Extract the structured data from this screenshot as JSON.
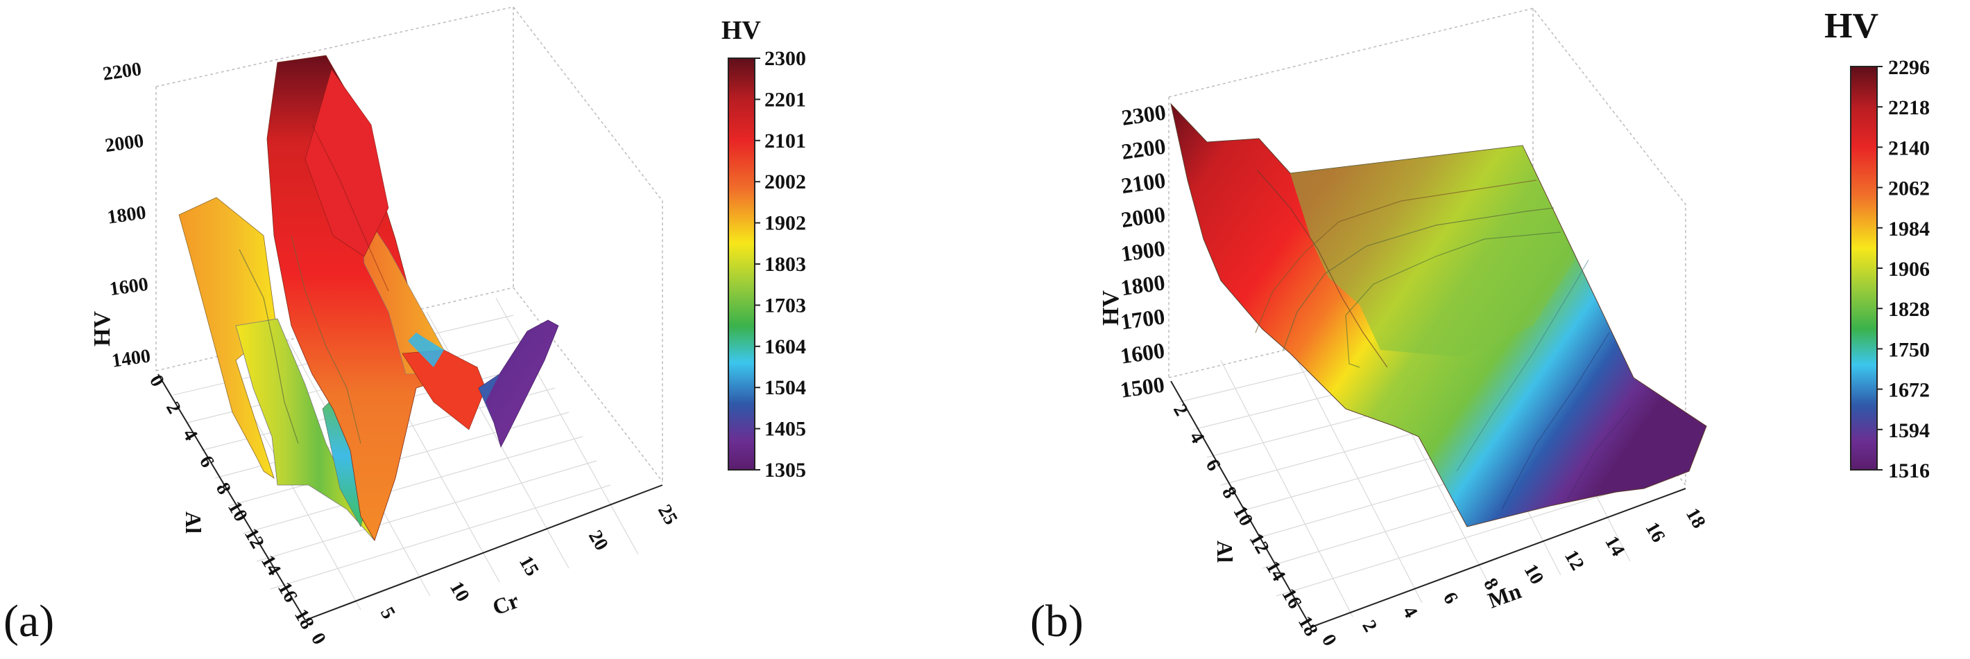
{
  "figure": {
    "panel_a_label": "(a)",
    "panel_b_label": "(b)"
  },
  "chart_data": [
    {
      "type": "surface3d",
      "panel": "(a)",
      "zlabel": "HV",
      "xlabel": "Cr",
      "ylabel": "Al",
      "x_ticks": [
        "0",
        "5",
        "10",
        "15",
        "20",
        "25"
      ],
      "y_ticks": [
        "0",
        "2",
        "4",
        "6",
        "8",
        "10",
        "12",
        "14",
        "16",
        "18"
      ],
      "z_ticks": [
        "1400",
        "1600",
        "1800",
        "2000",
        "2200"
      ],
      "colorbar_title": "HV",
      "colorbar_ticks": [
        "2300",
        "2201",
        "2101",
        "2002",
        "1902",
        "1803",
        "1703",
        "1604",
        "1504",
        "1405",
        "1305"
      ],
      "colorbar_range": [
        1305,
        2300
      ],
      "colors": [
        "#6a0f1c",
        "#c51f23",
        "#ee2424",
        "#f38a1f",
        "#f2e21a",
        "#8cc63f",
        "#3fb44a",
        "#3bbfe8",
        "#3154a3",
        "#6a2c8f",
        "#5a1f6e"
      ]
    },
    {
      "type": "surface3d",
      "panel": "(b)",
      "zlabel": "HV",
      "xlabel": "Mn",
      "ylabel": "Al",
      "x_ticks": [
        "0",
        "2",
        "4",
        "6",
        "8",
        "10",
        "12",
        "14",
        "16",
        "18"
      ],
      "y_ticks": [
        "2",
        "4",
        "6",
        "8",
        "10",
        "12",
        "14",
        "16",
        "18"
      ],
      "z_ticks": [
        "1500",
        "1600",
        "1700",
        "1800",
        "1900",
        "2000",
        "2100",
        "2200",
        "2300"
      ],
      "colorbar_title": "HV",
      "colorbar_ticks": [
        "2296",
        "2218",
        "2140",
        "2062",
        "1984",
        "1906",
        "1828",
        "1750",
        "1672",
        "1594",
        "1516"
      ],
      "colorbar_range": [
        1516,
        2296
      ],
      "colors": [
        "#6a0f1c",
        "#c51f23",
        "#ee2424",
        "#f38a1f",
        "#f2e21a",
        "#8cc63f",
        "#3fb44a",
        "#3bbfe8",
        "#3154a3",
        "#6a2c8f",
        "#5a1f6e"
      ]
    }
  ]
}
